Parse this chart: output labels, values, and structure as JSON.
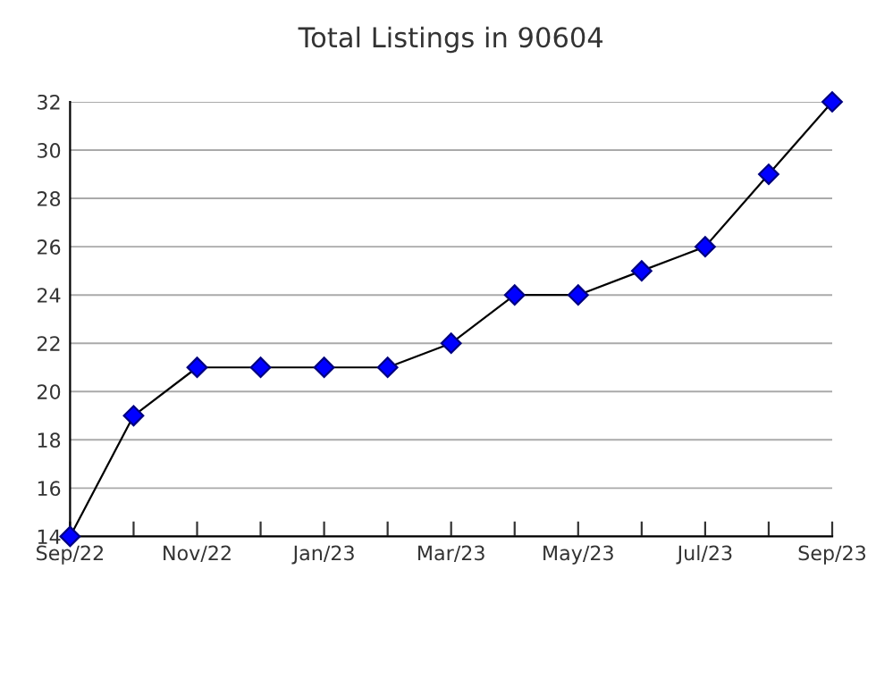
{
  "chart_data": {
    "type": "line",
    "title": "Total Listings in 90604",
    "categories": [
      "Sep/22",
      null,
      "Nov/22",
      null,
      "Jan/23",
      null,
      "Mar/23",
      null,
      "May/23",
      null,
      "Jul/23",
      null,
      "Sep/23"
    ],
    "series": [
      {
        "color": "#0000ff",
        "values": [
          14,
          19,
          21,
          21,
          21,
          21,
          22,
          24,
          24,
          25,
          26,
          29,
          32
        ]
      }
    ],
    "ylim": [
      14,
      32
    ],
    "yticks": [
      14,
      16,
      18,
      20,
      22,
      24,
      26,
      28,
      30,
      32
    ],
    "grid": "y",
    "marker": "diamond",
    "line_style": "solid"
  }
}
